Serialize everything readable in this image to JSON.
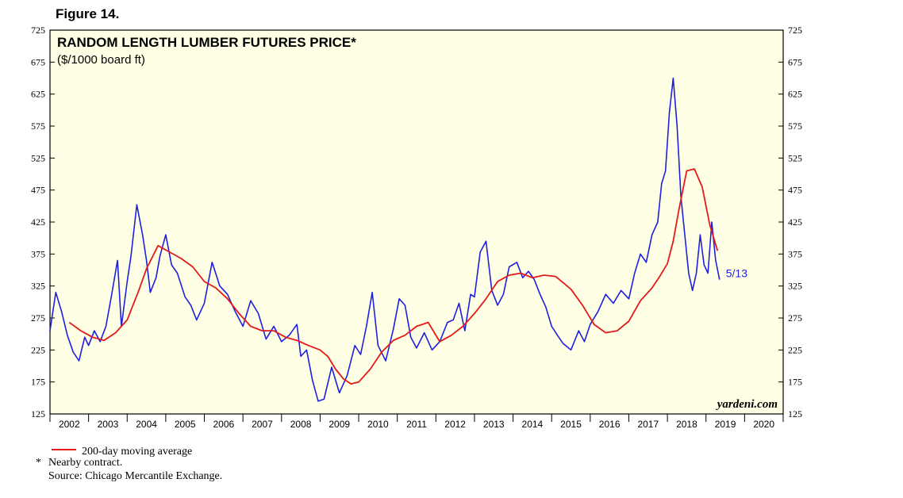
{
  "figure_label": "Figure 14.",
  "chart_data": {
    "type": "line",
    "title": "RANDOM LENGTH LUMBER FUTURES PRICE*",
    "subtitle": "($/1000 board ft)",
    "ylim": [
      125,
      725
    ],
    "yticks": [
      125,
      175,
      225,
      275,
      325,
      375,
      425,
      475,
      525,
      575,
      625,
      675,
      725
    ],
    "xlim": [
      2002,
      2021
    ],
    "xticks": [
      "2002",
      "2003",
      "2004",
      "2005",
      "2006",
      "2007",
      "2008",
      "2009",
      "2010",
      "2011",
      "2012",
      "2013",
      "2014",
      "2015",
      "2016",
      "2017",
      "2018",
      "2019",
      "2020"
    ],
    "series": [
      {
        "name": "Price",
        "color": "#1f1fe0",
        "x": [
          2002.0,
          2002.15,
          2002.3,
          2002.45,
          2002.6,
          2002.75,
          2002.9,
          2003.0,
          2003.15,
          2003.3,
          2003.45,
          2003.6,
          2003.75,
          2003.85,
          2004.0,
          2004.1,
          2004.25,
          2004.4,
          2004.5,
          2004.6,
          2004.75,
          2004.85,
          2005.0,
          2005.15,
          2005.3,
          2005.5,
          2005.65,
          2005.8,
          2006.0,
          2006.2,
          2006.4,
          2006.6,
          2006.8,
          2007.0,
          2007.2,
          2007.4,
          2007.6,
          2007.8,
          2008.0,
          2008.2,
          2008.4,
          2008.5,
          2008.65,
          2008.8,
          2008.95,
          2009.1,
          2009.3,
          2009.5,
          2009.7,
          2009.9,
          2010.05,
          2010.2,
          2010.35,
          2010.5,
          2010.7,
          2010.9,
          2011.05,
          2011.2,
          2011.35,
          2011.5,
          2011.7,
          2011.9,
          2012.1,
          2012.3,
          2012.45,
          2012.6,
          2012.75,
          2012.9,
          2013.0,
          2013.15,
          2013.3,
          2013.45,
          2013.6,
          2013.75,
          2013.9,
          2014.1,
          2014.25,
          2014.4,
          2014.55,
          2014.7,
          2014.85,
          2015.0,
          2015.15,
          2015.3,
          2015.5,
          2015.7,
          2015.85,
          2016.0,
          2016.2,
          2016.4,
          2016.6,
          2016.8,
          2017.0,
          2017.15,
          2017.3,
          2017.45,
          2017.6,
          2017.75,
          2017.85,
          2017.95,
          2018.05,
          2018.15,
          2018.25,
          2018.35,
          2018.45,
          2018.55,
          2018.65,
          2018.75,
          2018.85,
          2018.95,
          2019.05,
          2019.15,
          2019.25,
          2019.35
        ],
        "values": [
          255,
          315,
          285,
          248,
          222,
          208,
          245,
          232,
          255,
          238,
          262,
          312,
          365,
          262,
          332,
          372,
          452,
          405,
          365,
          315,
          338,
          372,
          405,
          358,
          345,
          308,
          295,
          272,
          298,
          362,
          325,
          312,
          285,
          262,
          302,
          282,
          242,
          262,
          238,
          248,
          265,
          215,
          225,
          178,
          145,
          148,
          198,
          158,
          185,
          232,
          218,
          262,
          315,
          232,
          208,
          258,
          305,
          295,
          245,
          228,
          252,
          225,
          238,
          268,
          272,
          298,
          255,
          312,
          308,
          378,
          395,
          318,
          295,
          312,
          355,
          362,
          338,
          348,
          335,
          312,
          292,
          262,
          248,
          235,
          225,
          255,
          238,
          265,
          285,
          312,
          298,
          318,
          305,
          345,
          375,
          362,
          405,
          425,
          485,
          505,
          595,
          650,
          575,
          465,
          405,
          345,
          318,
          345,
          405,
          358,
          345,
          425,
          365,
          335
        ]
      },
      {
        "name": "200-day moving average",
        "color": "#e31a1a",
        "x": [
          2002.5,
          2002.8,
          2003.1,
          2003.4,
          2003.7,
          2004.0,
          2004.3,
          2004.5,
          2004.8,
          2005.1,
          2005.4,
          2005.7,
          2006.0,
          2006.3,
          2006.6,
          2006.9,
          2007.2,
          2007.5,
          2007.8,
          2008.1,
          2008.4,
          2008.7,
          2009.0,
          2009.2,
          2009.4,
          2009.6,
          2009.8,
          2010.0,
          2010.3,
          2010.6,
          2010.9,
          2011.2,
          2011.5,
          2011.8,
          2012.1,
          2012.4,
          2012.7,
          2013.0,
          2013.3,
          2013.6,
          2013.9,
          2014.2,
          2014.5,
          2014.8,
          2015.1,
          2015.3,
          2015.5,
          2015.8,
          2016.1,
          2016.4,
          2016.7,
          2017.0,
          2017.3,
          2017.6,
          2017.8,
          2018.0,
          2018.15,
          2018.3,
          2018.5,
          2018.7,
          2018.9,
          2019.1,
          2019.3
        ],
        "values": [
          268,
          255,
          245,
          240,
          252,
          272,
          318,
          352,
          388,
          378,
          368,
          355,
          332,
          322,
          305,
          282,
          262,
          255,
          255,
          245,
          240,
          232,
          225,
          215,
          195,
          180,
          172,
          175,
          195,
          222,
          240,
          248,
          262,
          268,
          238,
          248,
          262,
          282,
          305,
          332,
          342,
          345,
          338,
          342,
          340,
          330,
          320,
          295,
          265,
          252,
          255,
          270,
          302,
          322,
          340,
          360,
          395,
          445,
          505,
          508,
          480,
          420,
          380
        ]
      }
    ],
    "annotations": [
      {
        "text": "5/13",
        "x": 2019.35,
        "y": 345
      }
    ],
    "watermark": "yardeni.com",
    "legend": {
      "text": "200-day moving average",
      "placement": "bottom-left"
    }
  },
  "footnotes": {
    "asterisk": "*",
    "nearby": "Nearby contract.",
    "source": "Source: Chicago Mercantile Exchange."
  }
}
